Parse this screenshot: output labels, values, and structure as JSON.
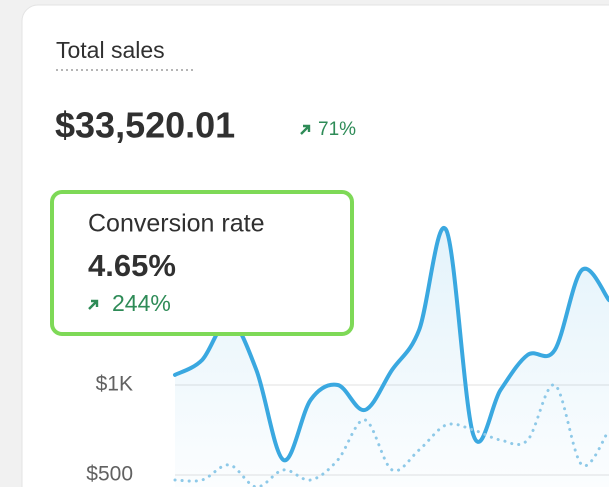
{
  "card": {
    "title": "Total sales",
    "total": "$33,520.01",
    "total_change": "71%"
  },
  "tooltip": {
    "label": "Conversion rate",
    "value": "4.65%",
    "change": "244%"
  },
  "chart_data": {
    "type": "line",
    "ylim": [
      433,
      2056
    ],
    "yticks": [
      {
        "value": 500,
        "label": "$500"
      },
      {
        "value": 1000,
        "label": "$1K"
      }
    ],
    "grid": true,
    "series": [
      {
        "color": "#3aa8e0",
        "style": "solid",
        "values": [
          1056,
          1139,
          1361,
          1083,
          583,
          917,
          1000,
          861,
          1083,
          1306,
          1861,
          722,
          972,
          1167,
          1194,
          1639,
          1472
        ]
      },
      {
        "color": "#8ec9e8",
        "style": "dotted",
        "values": [
          472,
          472,
          556,
          433,
          528,
          472,
          583,
          806,
          528,
          639,
          778,
          750,
          694,
          694,
          1000,
          556,
          750
        ]
      }
    ]
  }
}
